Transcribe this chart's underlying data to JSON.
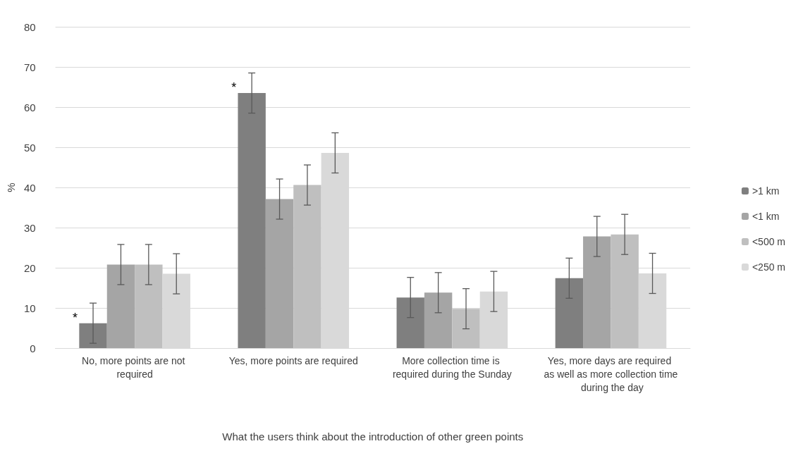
{
  "chart_data": {
    "type": "bar",
    "categories": [
      "No, more points are not required",
      "Yes, more points are required",
      "More collection time is required during the Sunday",
      "Yes, more days are required as well as more collection time during the day"
    ],
    "series": [
      {
        "name": ">1 km",
        "color": "#7f7f7f",
        "values": [
          6.2,
          63.5,
          12.6,
          17.4
        ],
        "errors": [
          5,
          5,
          5,
          5
        ]
      },
      {
        "name": "<1 km",
        "color": "#a5a5a5",
        "values": [
          20.8,
          37.1,
          13.8,
          27.8
        ],
        "errors": [
          5,
          5,
          5,
          5
        ]
      },
      {
        "name": "<500 m",
        "color": "#bfbfbf",
        "values": [
          20.8,
          40.6,
          9.8,
          28.3
        ],
        "errors": [
          5,
          5,
          5,
          5
        ]
      },
      {
        "name": "<250 m",
        "color": "#d9d9d9",
        "values": [
          18.5,
          48.6,
          14.1,
          18.6
        ],
        "errors": [
          5,
          5,
          5,
          5
        ]
      }
    ],
    "ylabel": "%",
    "xlabel": "What the users think about the introduction of other green points",
    "ylim": [
      0,
      80
    ],
    "yticks": [
      0,
      10,
      20,
      30,
      40,
      50,
      60,
      70,
      80
    ],
    "grid": "y",
    "legend": "right",
    "annotations": [
      "*",
      "*"
    ]
  }
}
